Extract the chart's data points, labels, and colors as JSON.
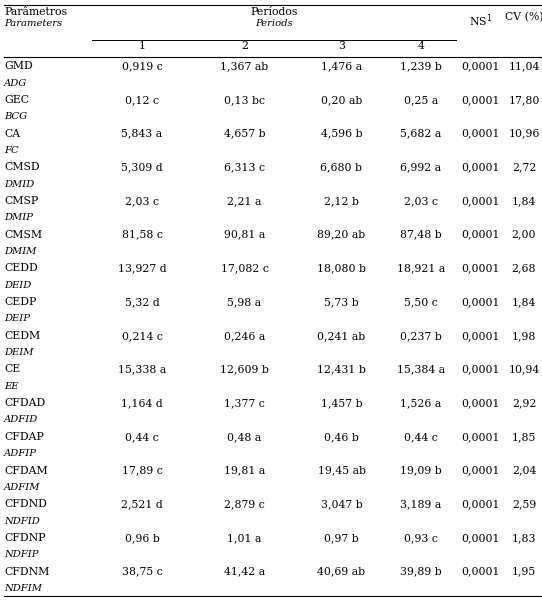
{
  "rows": [
    [
      "GMD",
      "0,919 c",
      "1,367 ab",
      "1,476 a",
      "1,239 b",
      "0,0001",
      "11,04"
    ],
    [
      "ADG",
      "",
      "",
      "",
      "",
      "",
      ""
    ],
    [
      "GEC",
      "0,12 c",
      "0,13 bc",
      "0,20 ab",
      "0,25 a",
      "0,0001",
      "17,80"
    ],
    [
      "BCG",
      "",
      "",
      "",
      "",
      "",
      ""
    ],
    [
      "CA",
      "5,843 a",
      "4,657 b",
      "4,596 b",
      "5,682 a",
      "0,0001",
      "10,96"
    ],
    [
      "FC",
      "",
      "",
      "",
      "",
      "",
      ""
    ],
    [
      "CMSD",
      "5,309 d",
      "6,313 c",
      "6,680 b",
      "6,992 a",
      "0,0001",
      "2,72"
    ],
    [
      "DMID",
      "",
      "",
      "",
      "",
      "",
      ""
    ],
    [
      "CMSP",
      "2,03 c",
      "2,21 a",
      "2,12 b",
      "2,03 c",
      "0,0001",
      "1,84"
    ],
    [
      "DMIP",
      "",
      "",
      "",
      "",
      "",
      ""
    ],
    [
      "CMSM",
      "81,58 c",
      "90,81 a",
      "89,20 ab",
      "87,48 b",
      "0,0001",
      "2,00"
    ],
    [
      "DMIM",
      "",
      "",
      "",
      "",
      "",
      ""
    ],
    [
      "CEDD",
      "13,927 d",
      "17,082 c",
      "18,080 b",
      "18,921 a",
      "0,0001",
      "2,68"
    ],
    [
      "DEID",
      "",
      "",
      "",
      "",
      "",
      ""
    ],
    [
      "CEDP",
      "5,32 d",
      "5,98 a",
      "5,73 b",
      "5,50 c",
      "0,0001",
      "1,84"
    ],
    [
      "DEIP",
      "",
      "",
      "",
      "",
      "",
      ""
    ],
    [
      "CEDM",
      "0,214 c",
      "0,246 a",
      "0,241 ab",
      "0,237 b",
      "0,0001",
      "1,98"
    ],
    [
      "DEIM",
      "",
      "",
      "",
      "",
      "",
      ""
    ],
    [
      "CE",
      "15,338 a",
      "12,609 b",
      "12,431 b",
      "15,384 a",
      "0,0001",
      "10,94"
    ],
    [
      "EE",
      "",
      "",
      "",
      "",
      "",
      ""
    ],
    [
      "CFDAD",
      "1,164 d",
      "1,377 c",
      "1,457 b",
      "1,526 a",
      "0,0001",
      "2,92"
    ],
    [
      "ADFID",
      "",
      "",
      "",
      "",
      "",
      ""
    ],
    [
      "CFDAP",
      "0,44 c",
      "0,48 a",
      "0,46 b",
      "0,44 c",
      "0,0001",
      "1,85"
    ],
    [
      "ADFIP",
      "",
      "",
      "",
      "",
      "",
      ""
    ],
    [
      "CFDAM",
      "17,89 c",
      "19,81 a",
      "19,45 ab",
      "19,09 b",
      "0,0001",
      "2,04"
    ],
    [
      "ADFIM",
      "",
      "",
      "",
      "",
      "",
      ""
    ],
    [
      "CFDND",
      "2,521 d",
      "2,879 c",
      "3,047 b",
      "3,189 a",
      "0,0001",
      "2,59"
    ],
    [
      "NDFID",
      "",
      "",
      "",
      "",
      "",
      ""
    ],
    [
      "CFDNP",
      "0,96 b",
      "1,01 a",
      "0,97 b",
      "0,93 c",
      "0,0001",
      "1,83"
    ],
    [
      "NDFIP",
      "",
      "",
      "",
      "",
      "",
      ""
    ],
    [
      "CFDNM",
      "38,75 c",
      "41,42 a",
      "40,69 ab",
      "39,89 b",
      "0,0001",
      "1,95"
    ],
    [
      "NDFIM",
      "",
      "",
      "",
      "",
      "",
      ""
    ]
  ],
  "italic_rows": [
    "ADG",
    "BCG",
    "FC",
    "DMID",
    "DMIP",
    "DMIM",
    "DEID",
    "DEIP",
    "DEIM",
    "EE",
    "ADFID",
    "ADFIP",
    "ADFIM",
    "NDFID",
    "NDFIP",
    "NDFIM"
  ],
  "bg_color": "#ffffff",
  "text_color": "#000000",
  "line_color": "#000000",
  "header_bold": "Parâmetros",
  "header_italic": "Parameters",
  "periodos_bold": "Períodos",
  "periodos_italic": "Periods",
  "ns_label": "NS$^1$",
  "cv_label": "CV (%)",
  "sub_headers": [
    "1",
    "2",
    "3",
    "4"
  ],
  "fs_main": 7.8,
  "fs_italic": 7.2
}
